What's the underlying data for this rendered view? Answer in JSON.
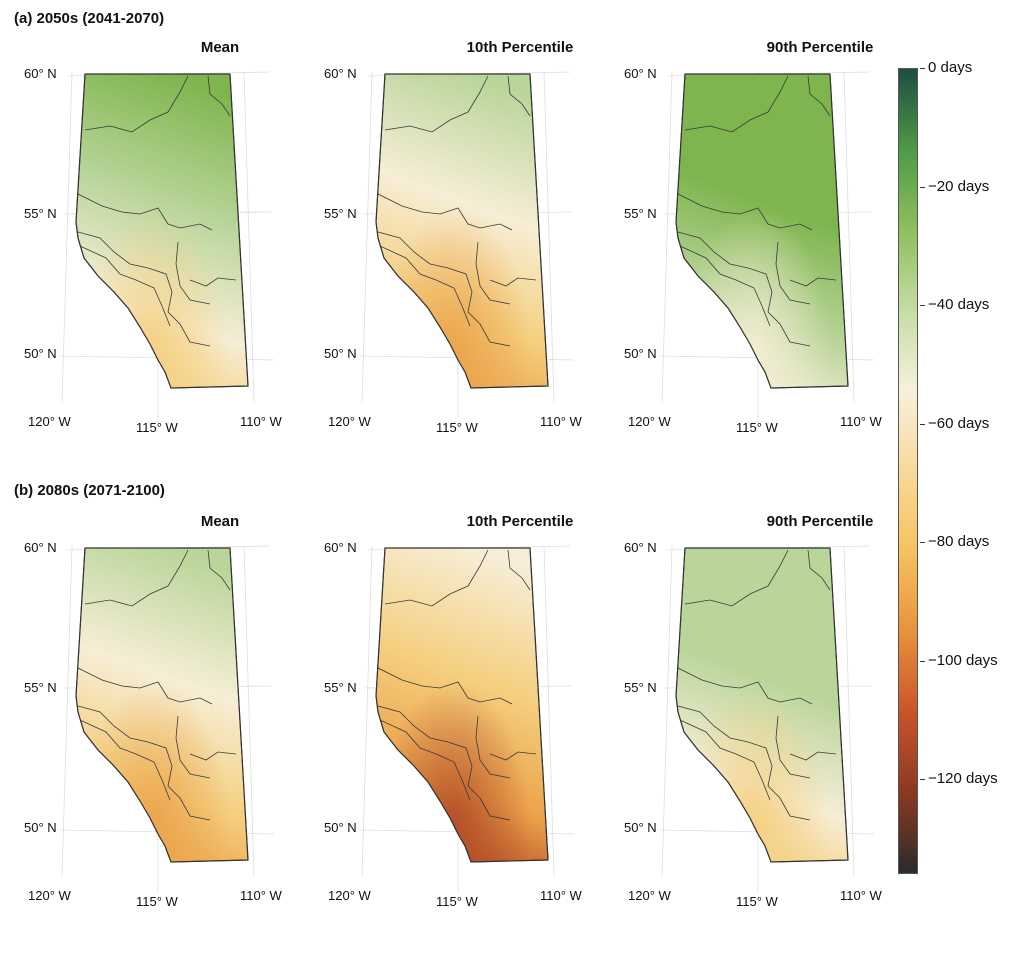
{
  "rows": [
    {
      "title": "(a) 2050s (2041-2070)",
      "panels": [
        {
          "title": "Mean",
          "intensity": "mid_a"
        },
        {
          "title": "10th Percentile",
          "intensity": "low_a"
        },
        {
          "title": "90th Percentile",
          "intensity": "high_a"
        }
      ]
    },
    {
      "title": "(b) 2080s (2071-2100)",
      "panels": [
        {
          "title": "Mean",
          "intensity": "mid_b"
        },
        {
          "title": "10th Percentile",
          "intensity": "low_b"
        },
        {
          "title": "90th Percentile",
          "intensity": "high_b"
        }
      ]
    }
  ],
  "axes": {
    "lat_labels": [
      "60° N",
      "55° N",
      "50° N"
    ],
    "lon_labels": [
      "120° W",
      "115° W",
      "110° W"
    ]
  },
  "colorbar": {
    "labels": [
      "0 days",
      "−20 days",
      "−40 days",
      "−60 days",
      "−80 days",
      "−100 days",
      "−120 days"
    ],
    "values": [
      0,
      -20,
      -40,
      -60,
      -80,
      -100,
      -120
    ],
    "range": [
      0,
      -136
    ],
    "stops": [
      "#1e4d42",
      "#4e9a46",
      "#8fbf5d",
      "#c5dca4",
      "#f7f1dc",
      "#f8d99a",
      "#f6c25f",
      "#e8923c",
      "#c9542a",
      "#8a3a22",
      "#2b2b2b"
    ]
  },
  "colors": {
    "green_dark": "#7fb54e",
    "green_light": "#b9d59a",
    "cream": "#f6eed6",
    "yellow": "#f5cf7f",
    "orange": "#eba34a",
    "brown": "#b24a26",
    "border": "#333333"
  }
}
